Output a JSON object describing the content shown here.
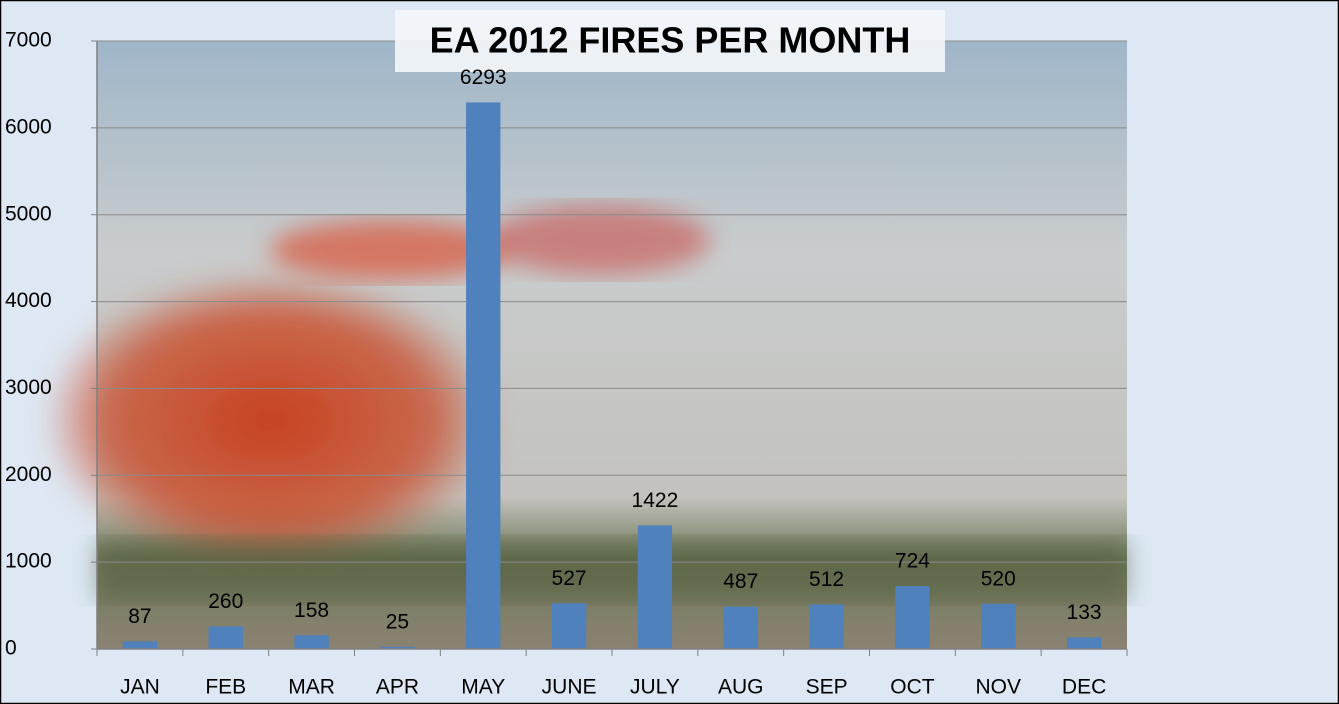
{
  "chart_data": {
    "type": "bar",
    "title": "EA 2012 FIRES PER MONTH",
    "categories": [
      "JAN",
      "FEB",
      "MAR",
      "APR",
      "MAY",
      "JUNE",
      "JULY",
      "AUG",
      "SEP",
      "OCT",
      "NOV",
      "DEC"
    ],
    "values": [
      87,
      260,
      158,
      25,
      6293,
      527,
      1422,
      487,
      512,
      724,
      520,
      133
    ],
    "color": "#4f81bd",
    "ylim": [
      0,
      7000
    ],
    "yticks": [
      0,
      1000,
      2000,
      3000,
      4000,
      5000,
      6000,
      7000
    ],
    "grid": true
  }
}
